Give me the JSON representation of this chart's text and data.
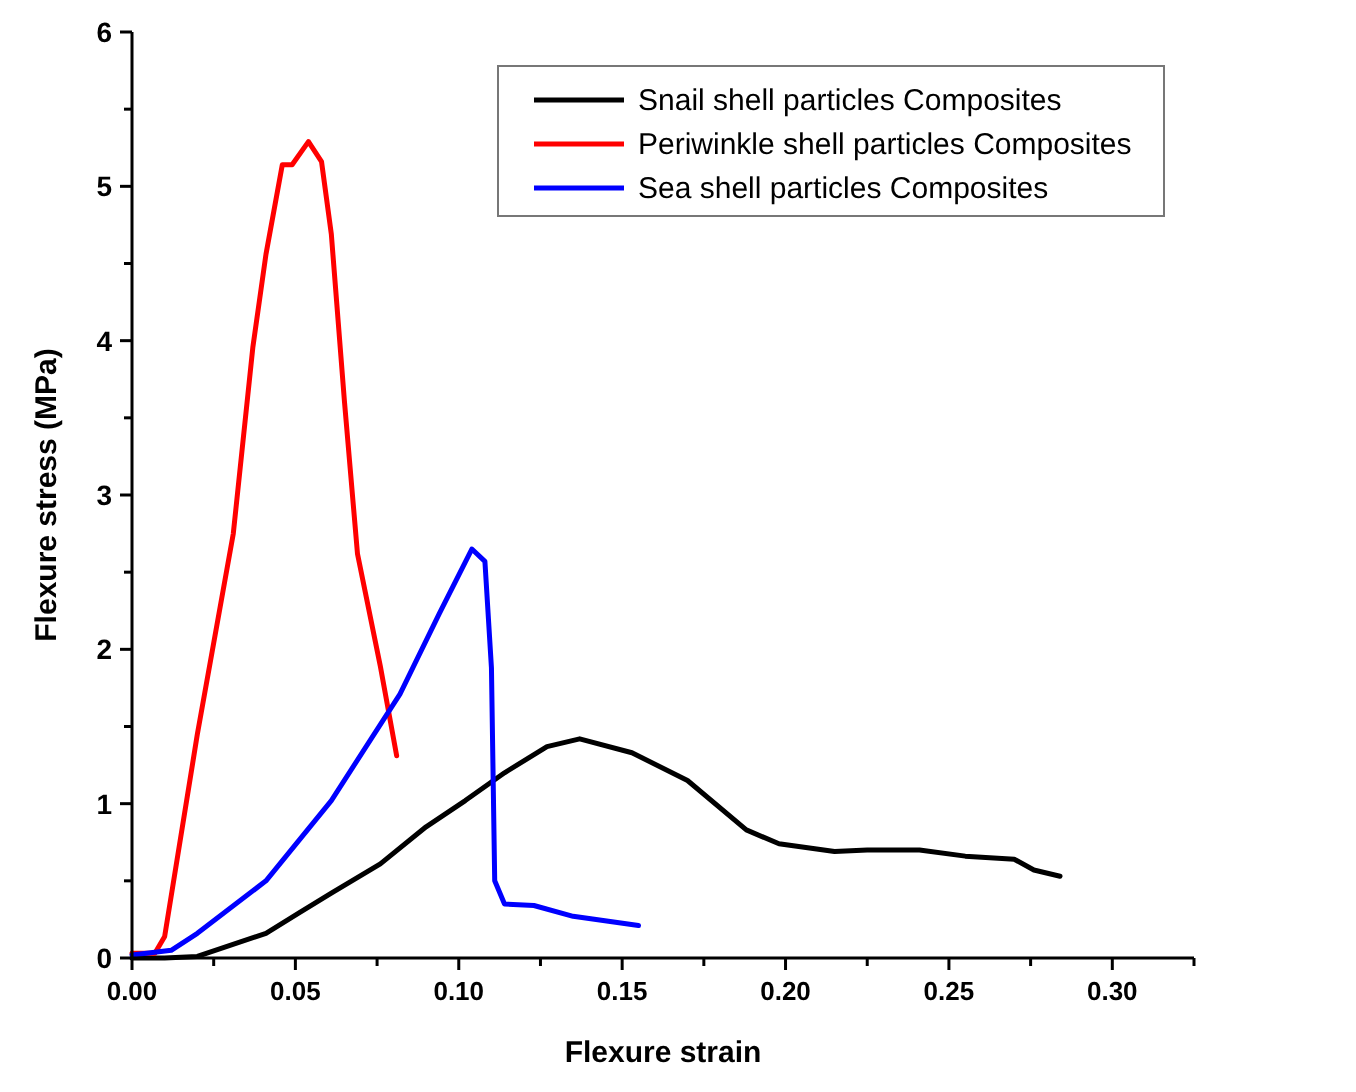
{
  "chart_data": {
    "type": "line",
    "xlabel": "Flexure strain",
    "ylabel": "Flexure stress (MPa)",
    "xlim": [
      0,
      0.325
    ],
    "ylim": [
      0,
      6
    ],
    "xticks": [
      {
        "value": 0,
        "label": "0.00"
      },
      {
        "value": 0.025,
        "label": null
      },
      {
        "value": 0.05,
        "label": "0.05"
      },
      {
        "value": 0.075,
        "label": null
      },
      {
        "value": 0.1,
        "label": "0.10"
      },
      {
        "value": 0.125,
        "label": null
      },
      {
        "value": 0.15,
        "label": "0.15"
      },
      {
        "value": 0.175,
        "label": null
      },
      {
        "value": 0.2,
        "label": "0.20"
      },
      {
        "value": 0.225,
        "label": null
      },
      {
        "value": 0.25,
        "label": "0.25"
      },
      {
        "value": 0.275,
        "label": null
      },
      {
        "value": 0.3,
        "label": "0.30"
      },
      {
        "value": 0.325,
        "label": null
      }
    ],
    "yticks": [
      0,
      {
        "value": 0.5,
        "label": null
      },
      1,
      {
        "value": 1.5,
        "label": null
      },
      2,
      {
        "value": 2.5,
        "label": null
      },
      3,
      {
        "value": 3.5,
        "label": null
      },
      4,
      {
        "value": 4.5,
        "label": null
      },
      5,
      {
        "value": 5.5,
        "label": null
      },
      6
    ],
    "legend": "top right",
    "grid": false,
    "marker": "none",
    "line_style": "solid",
    "series": [
      {
        "name": "Snail shell particles Composites",
        "color": "#000000",
        "x": [
          0,
          0.01,
          0.02,
          0.041,
          0.051,
          0.061,
          0.076,
          0.09,
          0.102,
          0.114,
          0.127,
          0.137,
          0.153,
          0.17,
          0.188,
          0.198,
          0.215,
          0.225,
          0.241,
          0.255,
          0.27,
          0.276,
          0.284
        ],
        "values": [
          0,
          0,
          0.01,
          0.16,
          0.29,
          0.42,
          0.61,
          0.85,
          1.02,
          1.2,
          1.37,
          1.42,
          1.33,
          1.15,
          0.83,
          0.74,
          0.69,
          0.7,
          0.7,
          0.66,
          0.64,
          0.57,
          0.53
        ]
      },
      {
        "name": "Periwinkle shell particles Composites",
        "color": "#ff0000",
        "x": [
          0,
          0.007,
          0.01,
          0.02,
          0.031,
          0.037,
          0.041,
          0.046,
          0.049,
          0.054,
          0.058,
          0.061,
          0.065,
          0.069,
          0.076,
          0.081
        ],
        "values": [
          0.03,
          0.03,
          0.14,
          1.45,
          2.75,
          3.96,
          4.56,
          5.14,
          5.14,
          5.29,
          5.16,
          4.69,
          3.61,
          2.62,
          1.89,
          1.31
        ]
      },
      {
        "name": "Sea shell particles Composites",
        "color": "#0000ff",
        "x": [
          0,
          0.012,
          0.02,
          0.041,
          0.061,
          0.082,
          0.094,
          0.104,
          0.108,
          0.11,
          0.111,
          0.114,
          0.123,
          0.135,
          0.155
        ],
        "values": [
          0.02,
          0.05,
          0.16,
          0.5,
          1.02,
          1.71,
          2.23,
          2.65,
          2.57,
          1.88,
          0.5,
          0.35,
          0.34,
          0.27,
          0.21
        ]
      }
    ]
  }
}
